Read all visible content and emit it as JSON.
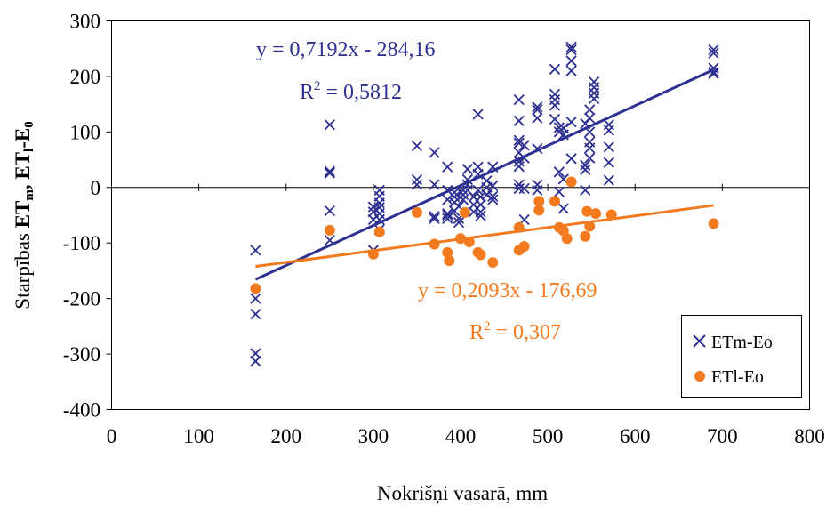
{
  "chart_data": {
    "type": "scatter",
    "xlabel": "Nokrišņi vasarā, mm",
    "ylabel": {
      "prefix": "Starpības",
      "term1_main": "ET",
      "term1_sub": "m",
      "separator": ",",
      "term2_main": "ET",
      "term2_sub": "l",
      "term2_rest": "-E",
      "term2_sub2": "0"
    },
    "xlim": [
      0,
      800
    ],
    "ylim": [
      -400,
      300
    ],
    "xticks": [
      "0",
      "100",
      "200",
      "300",
      "400",
      "500",
      "600",
      "700",
      "800"
    ],
    "yticks": [
      "300",
      "200",
      "100",
      "0",
      "-100",
      "-200",
      "-300",
      "-400"
    ],
    "grid": false,
    "legend_position": "bottom-right",
    "colors": {
      "etm": "#2e3192",
      "etl": "#f47a20"
    },
    "series": [
      {
        "name": "ETm-Eo",
        "marker": "x",
        "color": "#2e3192",
        "points": [
          [
            165,
            -113
          ],
          [
            165,
            -200
          ],
          [
            165,
            -228
          ],
          [
            165,
            -299
          ],
          [
            165,
            -313
          ],
          [
            250,
            113
          ],
          [
            250,
            29
          ],
          [
            250,
            26
          ],
          [
            250,
            -42
          ],
          [
            250,
            -95
          ],
          [
            300,
            -35
          ],
          [
            300,
            -44
          ],
          [
            300,
            -58
          ],
          [
            300,
            -113
          ],
          [
            307,
            -5
          ],
          [
            307,
            -16
          ],
          [
            307,
            -28
          ],
          [
            307,
            -36
          ],
          [
            307,
            -47
          ],
          [
            307,
            -58
          ],
          [
            307,
            -76
          ],
          [
            350,
            75
          ],
          [
            350,
            14
          ],
          [
            350,
            5
          ],
          [
            370,
            63
          ],
          [
            370,
            5
          ],
          [
            370,
            -52
          ],
          [
            370,
            -56
          ],
          [
            385,
            37
          ],
          [
            385,
            -5
          ],
          [
            385,
            -22
          ],
          [
            385,
            -47
          ],
          [
            385,
            -50
          ],
          [
            385,
            -56
          ],
          [
            393,
            -9
          ],
          [
            393,
            -17
          ],
          [
            393,
            -27
          ],
          [
            393,
            -42
          ],
          [
            398,
            -34
          ],
          [
            398,
            -56
          ],
          [
            398,
            -63
          ],
          [
            403,
            -5
          ],
          [
            403,
            -13
          ],
          [
            403,
            -22
          ],
          [
            408,
            33
          ],
          [
            408,
            14
          ],
          [
            408,
            5
          ],
          [
            408,
            -5
          ],
          [
            415,
            -17
          ],
          [
            415,
            -31
          ],
          [
            415,
            -44
          ],
          [
            420,
            132
          ],
          [
            420,
            37
          ],
          [
            420,
            24
          ],
          [
            420,
            -5
          ],
          [
            423,
            -17
          ],
          [
            423,
            -31
          ],
          [
            423,
            -44
          ],
          [
            423,
            -51
          ],
          [
            430,
            12
          ],
          [
            430,
            0
          ],
          [
            430,
            -13
          ],
          [
            437,
            37
          ],
          [
            437,
            3
          ],
          [
            437,
            -16
          ],
          [
            437,
            -22
          ],
          [
            467,
            158
          ],
          [
            467,
            120
          ],
          [
            467,
            85
          ],
          [
            467,
            80
          ],
          [
            467,
            63
          ],
          [
            467,
            47
          ],
          [
            467,
            38
          ],
          [
            467,
            5
          ],
          [
            467,
            -2
          ],
          [
            473,
            76
          ],
          [
            473,
            53
          ],
          [
            473,
            -2
          ],
          [
            473,
            -58
          ],
          [
            488,
            145
          ],
          [
            488,
            140
          ],
          [
            488,
            125
          ],
          [
            488,
            70
          ],
          [
            488,
            5
          ],
          [
            488,
            -5
          ],
          [
            508,
            213
          ],
          [
            508,
            168
          ],
          [
            508,
            158
          ],
          [
            508,
            148
          ],
          [
            508,
            123
          ],
          [
            513,
            108
          ],
          [
            513,
            100
          ],
          [
            513,
            28
          ],
          [
            513,
            -8
          ],
          [
            518,
            107
          ],
          [
            518,
            95
          ],
          [
            518,
            15
          ],
          [
            518,
            -38
          ],
          [
            527,
            253
          ],
          [
            527,
            248
          ],
          [
            527,
            228
          ],
          [
            527,
            210
          ],
          [
            527,
            118
          ],
          [
            527,
            52
          ],
          [
            543,
            115
          ],
          [
            543,
            40
          ],
          [
            543,
            32
          ],
          [
            543,
            -5
          ],
          [
            548,
            140
          ],
          [
            548,
            125
          ],
          [
            548,
            100
          ],
          [
            548,
            82
          ],
          [
            548,
            71
          ],
          [
            548,
            53
          ],
          [
            553,
            190
          ],
          [
            553,
            180
          ],
          [
            553,
            170
          ],
          [
            553,
            160
          ],
          [
            570,
            113
          ],
          [
            570,
            103
          ],
          [
            570,
            73
          ],
          [
            570,
            45
          ],
          [
            570,
            13
          ],
          [
            690,
            248
          ],
          [
            690,
            242
          ],
          [
            690,
            215
          ],
          [
            690,
            208
          ],
          [
            690,
            205
          ]
        ],
        "trendline": {
          "equation": "y = 0,7192x - 284,16",
          "r2_label": "R",
          "r2_sup": "2",
          "r2_value": " = 0,5812",
          "slope": 0.7192,
          "intercept": -284.16,
          "x_from": 165,
          "x_to": 690
        }
      },
      {
        "name": "ETl-Eo",
        "marker": "circle",
        "color": "#f47a20",
        "points": [
          [
            165,
            -182
          ],
          [
            250,
            -77
          ],
          [
            300,
            -120
          ],
          [
            307,
            -80
          ],
          [
            350,
            -45
          ],
          [
            370,
            -102
          ],
          [
            385,
            -117
          ],
          [
            387,
            -132
          ],
          [
            400,
            -92
          ],
          [
            405,
            -45
          ],
          [
            410,
            -98
          ],
          [
            420,
            -117
          ],
          [
            423,
            -121
          ],
          [
            437,
            -135
          ],
          [
            467,
            -113
          ],
          [
            467,
            -72
          ],
          [
            473,
            -106
          ],
          [
            490,
            -25
          ],
          [
            490,
            -41
          ],
          [
            508,
            -25
          ],
          [
            513,
            -72
          ],
          [
            518,
            -78
          ],
          [
            522,
            -92
          ],
          [
            527,
            10
          ],
          [
            543,
            -88
          ],
          [
            545,
            -43
          ],
          [
            548,
            -70
          ],
          [
            555,
            -47
          ],
          [
            573,
            -49
          ],
          [
            690,
            -65
          ]
        ],
        "trendline": {
          "equation": "y = 0,2093x - 176,69",
          "r2_label": "R",
          "r2_sup": "2",
          "r2_value": " = 0,307",
          "slope": 0.2093,
          "intercept": -176.69,
          "x_from": 165,
          "x_to": 690
        }
      }
    ]
  }
}
